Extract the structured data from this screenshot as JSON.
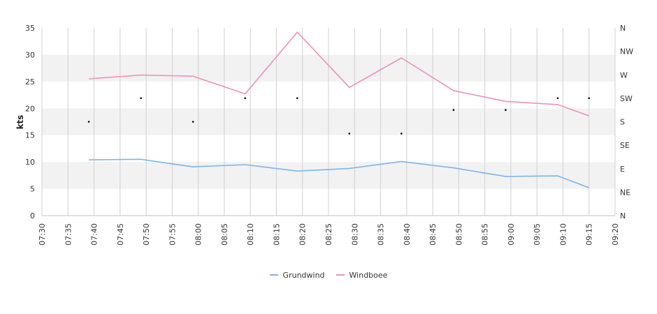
{
  "chart_data": {
    "type": "line",
    "ylabel": "kts",
    "ylim": [
      0,
      35
    ],
    "y_ticks": [
      "0",
      "5",
      "10",
      "15",
      "20",
      "25",
      "30",
      "35"
    ],
    "y2_ticks": [
      "N",
      "NE",
      "E",
      "SE",
      "S",
      "SW",
      "W",
      "NW",
      "N"
    ],
    "x_ticks": [
      "07:30",
      "07:35",
      "07:40",
      "07:45",
      "07:50",
      "07:55",
      "08:00",
      "08:05",
      "08:10",
      "08:15",
      "08:20",
      "08:25",
      "08:30",
      "08:35",
      "08:40",
      "08:45",
      "08:50",
      "08:55",
      "09:00",
      "09:05",
      "09:10",
      "09:15",
      "09:20"
    ],
    "grid": true,
    "legend_position": "bottom",
    "series": [
      {
        "name": "Grundwind",
        "color": "#7cb5ec",
        "x": [
          "07:39",
          "07:49",
          "07:59",
          "08:09",
          "08:19",
          "08:29",
          "08:39",
          "08:49",
          "08:59",
          "09:09",
          "09:15"
        ],
        "values": [
          10.4,
          10.5,
          9.1,
          9.5,
          8.3,
          8.8,
          10.1,
          8.9,
          7.3,
          7.4,
          5.2
        ]
      },
      {
        "name": "Windboee",
        "color": "#f08fbc",
        "x": [
          "07:39",
          "07:49",
          "07:59",
          "08:09",
          "08:19",
          "08:29",
          "08:39",
          "08:49",
          "08:59",
          "09:09",
          "09:15"
        ],
        "values": [
          25.5,
          26.2,
          26.0,
          22.7,
          34.2,
          23.9,
          29.4,
          23.3,
          21.3,
          20.7,
          18.6
        ]
      },
      {
        "type": "scatter",
        "color": "#000000",
        "x": [
          "07:39",
          "07:49",
          "07:59",
          "08:09",
          "08:19",
          "08:29",
          "08:39",
          "08:49",
          "08:59",
          "09:09",
          "09:15"
        ],
        "values": [
          17.5,
          21.9,
          17.5,
          21.9,
          21.9,
          15.3,
          15.3,
          19.7,
          19.7,
          21.9,
          21.9
        ]
      }
    ]
  }
}
